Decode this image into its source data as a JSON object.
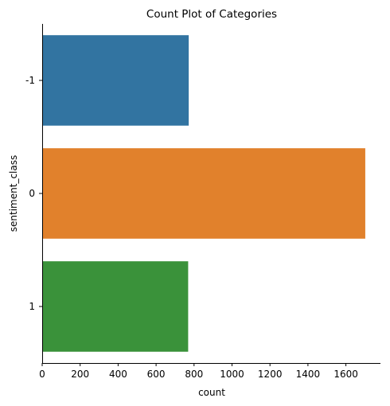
{
  "chart_data": {
    "type": "bar",
    "orientation": "horizontal",
    "title": "Count Plot of Categories",
    "xlabel": "count",
    "ylabel": "sentiment_class",
    "categories": [
      "-1",
      "0",
      "1"
    ],
    "values": [
      772,
      1702,
      769
    ],
    "colors": [
      "#3274a1",
      "#e1812c",
      "#3a923a"
    ],
    "xlim": [
      0,
      1780
    ],
    "xticks": [
      0,
      200,
      400,
      600,
      800,
      1000,
      1200,
      1400,
      1600
    ],
    "grid": false
  }
}
